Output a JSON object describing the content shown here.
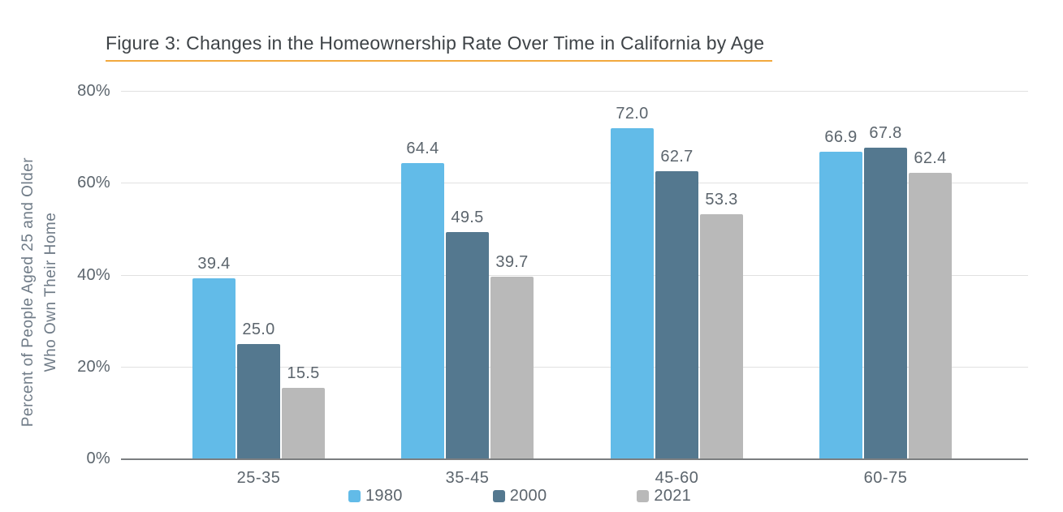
{
  "title": "Figure 3: Changes in the Homeownership Rate Over Time in California by Age",
  "y_axis": {
    "label_line1": "Percent of People Aged 25 and Older",
    "label_line2": "Who Own Their Home"
  },
  "colors": {
    "title_underline": "#f2a93e",
    "series_1980": "#62bbe8",
    "series_2000": "#54788f",
    "series_2021": "#b9b9b9",
    "gridline": "#e1e1e1",
    "axis_baseline": "#7b7e80",
    "axis_text": "#5c656d"
  },
  "chart_data": {
    "type": "bar",
    "title": "Figure 3: Changes in the Homeownership Rate Over Time in California by Age",
    "categories": [
      "25-35",
      "35-45",
      "45-60",
      "60-75"
    ],
    "series": [
      {
        "name": "1980",
        "color": "#62bbe8",
        "values": [
          39.4,
          64.4,
          72.0,
          66.9
        ]
      },
      {
        "name": "2000",
        "color": "#54788f",
        "values": [
          25.0,
          49.5,
          62.7,
          67.8
        ]
      },
      {
        "name": "2021",
        "color": "#b9b9b9",
        "values": [
          15.5,
          39.7,
          53.3,
          62.4
        ]
      }
    ],
    "xlabel": "",
    "ylabel": "Percent of People Aged 25 and Older Who Own Their Home",
    "ylim": [
      0,
      80
    ],
    "yticks": [
      0,
      20,
      40,
      60,
      80
    ],
    "ytick_format": "percent",
    "grid": true,
    "value_labels": true,
    "value_label_decimals": 1,
    "legend_position": "bottom"
  },
  "legend": {
    "items": [
      {
        "label": "1980"
      },
      {
        "label": "2000"
      },
      {
        "label": "2021"
      }
    ]
  }
}
